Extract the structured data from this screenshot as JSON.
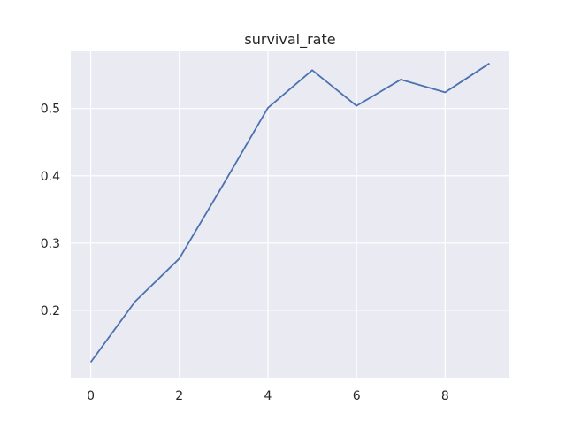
{
  "colors": {
    "background": "#ffffff",
    "plot_background": "#eaeaf2",
    "grid": "#ffffff",
    "line": "#4c72b0",
    "text": "#262626"
  },
  "chart_data": {
    "type": "line",
    "title": "survival_rate",
    "xlabel": "",
    "ylabel": "",
    "x": [
      0,
      1,
      2,
      3,
      4,
      5,
      6,
      7,
      8,
      9
    ],
    "series": [
      {
        "values": [
          0.123,
          0.213,
          0.277,
          0.388,
          0.501,
          0.557,
          0.504,
          0.543,
          0.524,
          0.567
        ]
      }
    ],
    "xlim": [
      -0.45,
      9.45
    ],
    "ylim": [
      0.1,
      0.585
    ],
    "xticks": [
      0,
      2,
      4,
      6,
      8
    ],
    "yticks": [
      0.2,
      0.3,
      0.4,
      0.5
    ],
    "xtick_labels": [
      "0",
      "2",
      "4",
      "6",
      "8"
    ],
    "ytick_labels": [
      "0.2",
      "0.3",
      "0.4",
      "0.5"
    ],
    "grid": true,
    "legend": "none"
  }
}
